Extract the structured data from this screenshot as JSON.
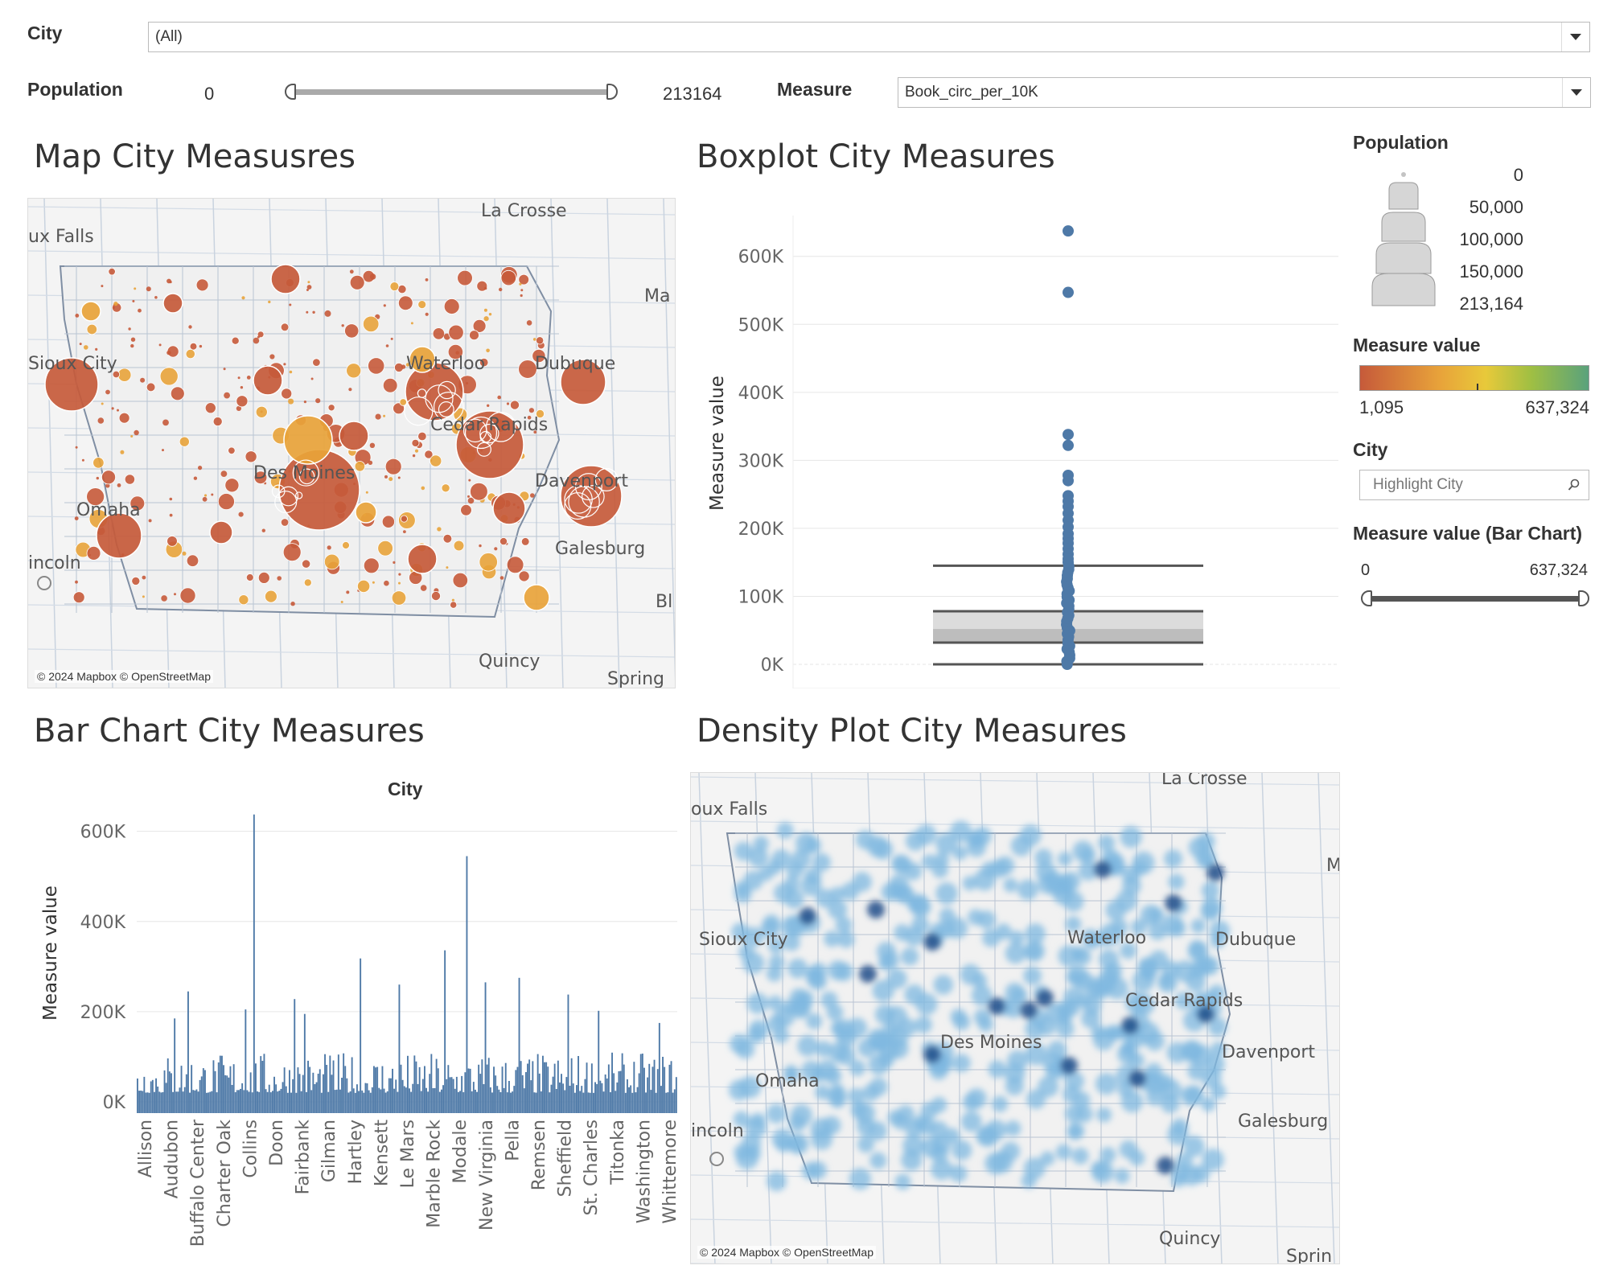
{
  "filters": {
    "city_label": "City",
    "city_value": "(All)",
    "population_label": "Population",
    "population_min": "0",
    "population_max": "213164",
    "measure_label": "Measure",
    "measure_value": "Book_circ_per_10K"
  },
  "map_panel": {
    "title": "Map City Measusres",
    "attribution": "© 2024 Mapbox © OpenStreetMap",
    "places": [
      "La Crosse",
      "ux Falls",
      "Sioux City",
      "Dubuque",
      "Des Moines",
      "Cedar Rapids",
      "Davenport",
      "Omaha",
      "incoln",
      "Galesburg",
      "Quincy",
      "Spring",
      "Ma",
      "Bl",
      "Waterloo"
    ]
  },
  "boxplot_panel": {
    "title": "Boxplot City Measures",
    "ylabel": "Measure value"
  },
  "bar_panel": {
    "title": "Bar Chart City Measures",
    "header": "City",
    "ylabel": "Measure value"
  },
  "density_panel": {
    "title": "Density Plot City Measures",
    "attribution": "© 2024 Mapbox © OpenStreetMap",
    "places": [
      "La Crosse",
      "oux Falls",
      "Sioux City",
      "Dubuque",
      "Waterloo",
      "Cedar Rapids",
      "Des Moines",
      "Davenport",
      "Omaha",
      "incoln",
      "Galesburg",
      "Quincy",
      "Sprin",
      "M"
    ]
  },
  "legend": {
    "population_title": "Population",
    "population_sizes": [
      "0",
      "50,000",
      "100,000",
      "150,000",
      "213,164"
    ],
    "measure_title": "Measure value",
    "measure_min": "1,095",
    "measure_max": "637,324",
    "city_title": "City",
    "city_placeholder": "Highlight City",
    "bar_filter_title": "Measure value (Bar Chart)",
    "bar_filter_min": "0",
    "bar_filter_max": "637,324"
  },
  "colors": {
    "bar": "#4e79a7",
    "density": "#7fb8e0",
    "density_dark": "#1f4e89",
    "map_low": "#c65a3a",
    "map_mid": "#e8a33a",
    "map_high": "#5aa27c"
  },
  "chart_data": [
    {
      "type": "boxplot",
      "title": "Boxplot City Measures",
      "ylabel": "Measure value",
      "yticks": [
        "0K",
        "100K",
        "200K",
        "300K",
        "400K",
        "500K",
        "600K"
      ],
      "ylim": [
        0,
        660000
      ],
      "whisker_low": 0,
      "q1": 32000,
      "median": 52000,
      "q3": 78000,
      "whisker_high": 145000,
      "outliers": [
        637324,
        547000,
        338000,
        322000,
        278000,
        270000,
        248000,
        240000,
        232000,
        222000,
        212000,
        202000,
        192000,
        185000,
        178000,
        170000,
        162000,
        155000,
        150000
      ],
      "grid": true
    },
    {
      "type": "bar",
      "title": "",
      "xlabel": "City",
      "ylabel": "Measure value",
      "yticks": [
        "0K",
        "200K",
        "400K",
        "600K"
      ],
      "ylim": [
        0,
        660000
      ],
      "tick_labels": [
        "Allison",
        "Audubon",
        "Buffalo Center",
        "Charter Oak",
        "Collins",
        "Doon",
        "Fairbank",
        "Gilman",
        "Hartley",
        "Kensett",
        "Le Mars",
        "Marble Rock",
        "Modale",
        "New Virginia",
        "Pella",
        "Remsen",
        "Sheffield",
        "St. Charles",
        "Titonka",
        "Washington",
        "Whittemore"
      ],
      "peaks": [
        {
          "position": 0.07,
          "value": 185000
        },
        {
          "position": 0.095,
          "value": 245000
        },
        {
          "position": 0.2,
          "value": 205000
        },
        {
          "position": 0.215,
          "value": 637324
        },
        {
          "position": 0.29,
          "value": 228000
        },
        {
          "position": 0.31,
          "value": 195000
        },
        {
          "position": 0.415,
          "value": 318000
        },
        {
          "position": 0.485,
          "value": 260000
        },
        {
          "position": 0.57,
          "value": 336000
        },
        {
          "position": 0.61,
          "value": 545000
        },
        {
          "position": 0.645,
          "value": 265000
        },
        {
          "position": 0.71,
          "value": 275000
        },
        {
          "position": 0.8,
          "value": 238000
        },
        {
          "position": 0.855,
          "value": 202000
        },
        {
          "position": 0.97,
          "value": 175000
        }
      ],
      "grid": true
    }
  ]
}
